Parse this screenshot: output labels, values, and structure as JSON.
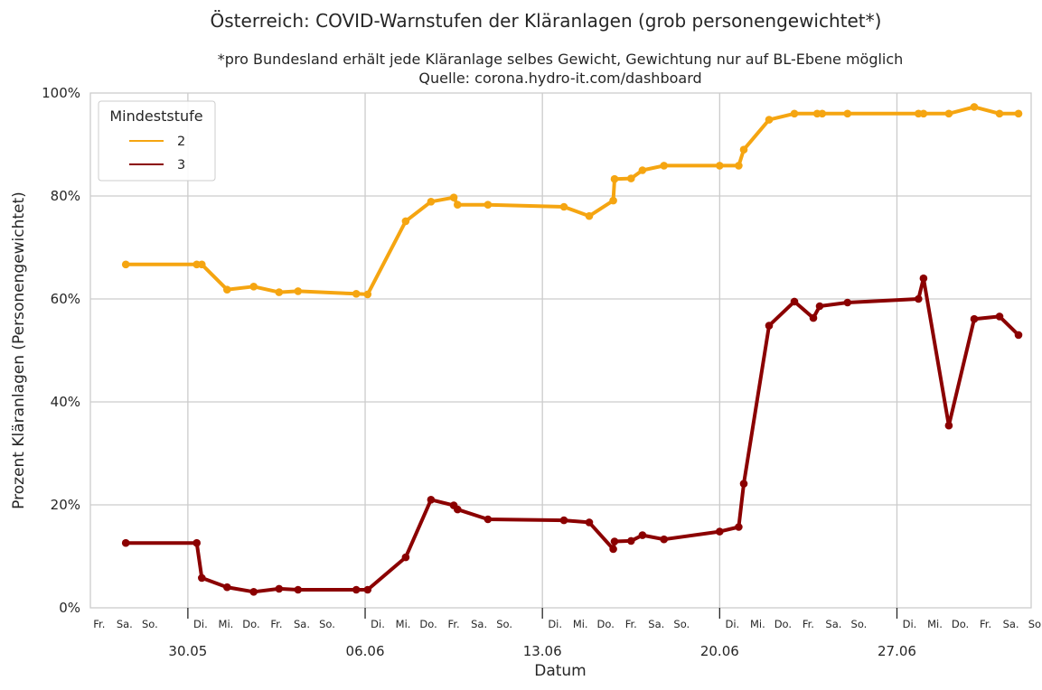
{
  "chart_data": {
    "type": "line",
    "title": "Österreich: COVID-Warnstufen der Kläranlagen (grob personengewichtet*)",
    "subtitle_lines": [
      "*pro Bundesland erhält jede Kläranlage selbes Gewicht, Gewichtung nur auf BL-Ebene möglich",
      "Quelle: corona.hydro-it.com/dashboard"
    ],
    "xlabel": "Datum",
    "ylabel": "Prozent Kläranlagen (Personengewichtet)",
    "ylim": [
      0,
      100
    ],
    "yticks": [
      {
        "value": 0,
        "label": "0%"
      },
      {
        "value": 20,
        "label": "20%"
      },
      {
        "value": 40,
        "label": "40%"
      },
      {
        "value": 60,
        "label": "60%"
      },
      {
        "value": 80,
        "label": "80%"
      },
      {
        "value": 100,
        "label": "100%"
      }
    ],
    "xlim": [
      -0.85,
      36.3
    ],
    "major_ticks": [
      {
        "day": 3,
        "label": "30.05"
      },
      {
        "day": 10,
        "label": "06.06"
      },
      {
        "day": 17,
        "label": "13.06"
      },
      {
        "day": 24,
        "label": "20.06"
      },
      {
        "day": 31,
        "label": "27.06"
      }
    ],
    "day_labels": [
      {
        "day": -0.5,
        "label": "Fr."
      },
      {
        "day": 0.5,
        "label": "Sa."
      },
      {
        "day": 1.5,
        "label": "So."
      },
      {
        "day": 3.5,
        "label": "Di."
      },
      {
        "day": 4.5,
        "label": "Mi."
      },
      {
        "day": 5.5,
        "label": "Do."
      },
      {
        "day": 6.5,
        "label": "Fr."
      },
      {
        "day": 7.5,
        "label": "Sa."
      },
      {
        "day": 8.5,
        "label": "So."
      },
      {
        "day": 10.5,
        "label": "Di."
      },
      {
        "day": 11.5,
        "label": "Mi."
      },
      {
        "day": 12.5,
        "label": "Do."
      },
      {
        "day": 13.5,
        "label": "Fr."
      },
      {
        "day": 14.5,
        "label": "Sa."
      },
      {
        "day": 15.5,
        "label": "So."
      },
      {
        "day": 17.5,
        "label": "Di."
      },
      {
        "day": 18.5,
        "label": "Mi."
      },
      {
        "day": 19.5,
        "label": "Do."
      },
      {
        "day": 20.5,
        "label": "Fr."
      },
      {
        "day": 21.5,
        "label": "Sa."
      },
      {
        "day": 22.5,
        "label": "So."
      },
      {
        "day": 24.5,
        "label": "Di."
      },
      {
        "day": 25.5,
        "label": "Mi."
      },
      {
        "day": 26.5,
        "label": "Do."
      },
      {
        "day": 27.5,
        "label": "Fr."
      },
      {
        "day": 28.5,
        "label": "Sa."
      },
      {
        "day": 29.5,
        "label": "So."
      },
      {
        "day": 31.5,
        "label": "Di."
      },
      {
        "day": 32.5,
        "label": "Mi."
      },
      {
        "day": 33.5,
        "label": "Do."
      },
      {
        "day": 34.5,
        "label": "Fr."
      },
      {
        "day": 35.5,
        "label": "Sa."
      },
      {
        "day": 36.5,
        "label": "So."
      }
    ],
    "grid": true,
    "legend": {
      "title": "Mindeststufe",
      "placement": "top-left"
    },
    "series": [
      {
        "name": "2",
        "color": "#f5a511",
        "points": [
          [
            0.55,
            66.7
          ],
          [
            3.35,
            66.7
          ],
          [
            3.55,
            66.7
          ],
          [
            4.55,
            61.8
          ],
          [
            5.6,
            62.4
          ],
          [
            6.6,
            61.3
          ],
          [
            7.35,
            61.5
          ],
          [
            9.65,
            61.0
          ],
          [
            10.1,
            60.9
          ],
          [
            11.6,
            75.1
          ],
          [
            12.6,
            78.9
          ],
          [
            13.5,
            79.7
          ],
          [
            13.65,
            78.3
          ],
          [
            14.85,
            78.3
          ],
          [
            17.85,
            77.9
          ],
          [
            18.85,
            76.1
          ],
          [
            19.8,
            79.1
          ],
          [
            19.85,
            83.3
          ],
          [
            20.5,
            83.4
          ],
          [
            20.95,
            85.0
          ],
          [
            21.8,
            85.9
          ],
          [
            24.0,
            85.9
          ],
          [
            24.75,
            85.9
          ],
          [
            24.95,
            89.0
          ],
          [
            25.95,
            94.8
          ],
          [
            26.95,
            96.0
          ],
          [
            27.85,
            96.0
          ],
          [
            28.05,
            96.0
          ],
          [
            29.05,
            96.0
          ],
          [
            31.85,
            96.0
          ],
          [
            32.05,
            96.0
          ],
          [
            33.05,
            96.0
          ],
          [
            34.05,
            97.3
          ],
          [
            35.05,
            96.0
          ],
          [
            35.8,
            96.0
          ]
        ]
      },
      {
        "name": "3",
        "color": "#8b0000",
        "points": [
          [
            0.55,
            12.6
          ],
          [
            3.35,
            12.6
          ],
          [
            3.55,
            5.8
          ],
          [
            4.55,
            4.0
          ],
          [
            5.6,
            3.1
          ],
          [
            6.6,
            3.7
          ],
          [
            7.35,
            3.5
          ],
          [
            9.65,
            3.5
          ],
          [
            10.1,
            3.5
          ],
          [
            11.6,
            9.8
          ],
          [
            12.6,
            21.0
          ],
          [
            13.5,
            19.9
          ],
          [
            13.65,
            19.1
          ],
          [
            14.85,
            17.2
          ],
          [
            17.85,
            17.0
          ],
          [
            18.85,
            16.6
          ],
          [
            19.8,
            11.4
          ],
          [
            19.85,
            12.9
          ],
          [
            20.5,
            13.0
          ],
          [
            20.95,
            14.1
          ],
          [
            21.8,
            13.3
          ],
          [
            24.0,
            14.8
          ],
          [
            24.75,
            15.7
          ],
          [
            24.95,
            24.1
          ],
          [
            25.95,
            54.8
          ],
          [
            26.95,
            59.5
          ],
          [
            27.7,
            56.3
          ],
          [
            27.95,
            58.6
          ],
          [
            29.05,
            59.3
          ],
          [
            31.85,
            60.0
          ],
          [
            32.05,
            64.0
          ],
          [
            33.05,
            35.4
          ],
          [
            34.05,
            56.1
          ],
          [
            35.05,
            56.6
          ],
          [
            35.8,
            53.0
          ]
        ]
      }
    ]
  }
}
